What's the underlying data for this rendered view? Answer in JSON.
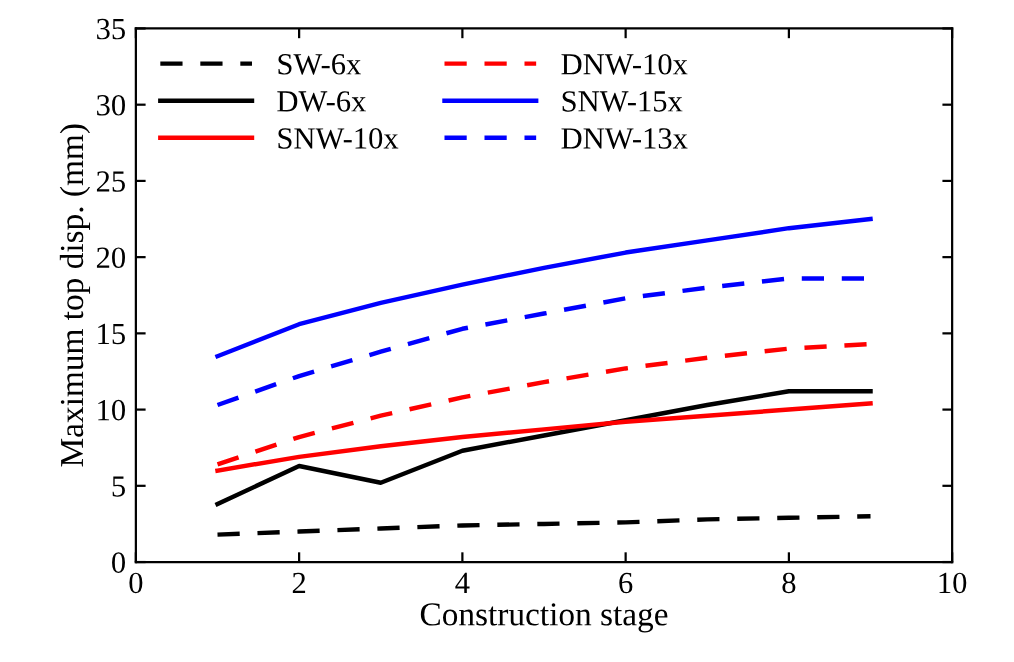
{
  "chart_data": {
    "type": "line",
    "xlabel": "Construction stage",
    "ylabel": "Maximum top disp. (mm)",
    "x": [
      1,
      2,
      3,
      4,
      5,
      6,
      7,
      8,
      9
    ],
    "series": [
      {
        "name": "SW-6x",
        "color": "#000000",
        "line_style": "dashed",
        "values": [
          1.8,
          2.0,
          2.2,
          2.4,
          2.5,
          2.6,
          2.8,
          2.9,
          3.0
        ]
      },
      {
        "name": "DW-6x",
        "color": "#000000",
        "line_style": "solid",
        "values": [
          3.8,
          6.3,
          5.2,
          7.3,
          8.3,
          9.3,
          10.3,
          11.2,
          11.2
        ]
      },
      {
        "name": "SNW-10x",
        "color": "#ff0000",
        "line_style": "solid",
        "values": [
          6.0,
          6.9,
          7.6,
          8.2,
          8.7,
          9.2,
          9.6,
          10.0,
          10.4
        ]
      },
      {
        "name": "DNW-10x",
        "color": "#ff0000",
        "line_style": "dashed",
        "values": [
          6.4,
          8.2,
          9.6,
          10.8,
          11.8,
          12.7,
          13.4,
          14.0,
          14.3
        ]
      },
      {
        "name": "SNW-15x",
        "color": "#0000ff",
        "line_style": "solid",
        "values": [
          13.5,
          15.6,
          17.0,
          18.2,
          19.3,
          20.3,
          21.1,
          21.9,
          22.5
        ]
      },
      {
        "name": "DNW-13x",
        "color": "#0000ff",
        "line_style": "dashed",
        "values": [
          10.3,
          12.2,
          13.8,
          15.3,
          16.3,
          17.3,
          18.0,
          18.6,
          18.6
        ]
      }
    ],
    "xlim": [
      0,
      10
    ],
    "xticks": [
      0,
      2,
      4,
      6,
      8,
      10
    ],
    "ylim": [
      0,
      35
    ],
    "yticks": [
      0,
      5,
      10,
      15,
      20,
      25,
      30,
      35
    ],
    "grid": false,
    "legend": "top left",
    "marker": "none"
  }
}
